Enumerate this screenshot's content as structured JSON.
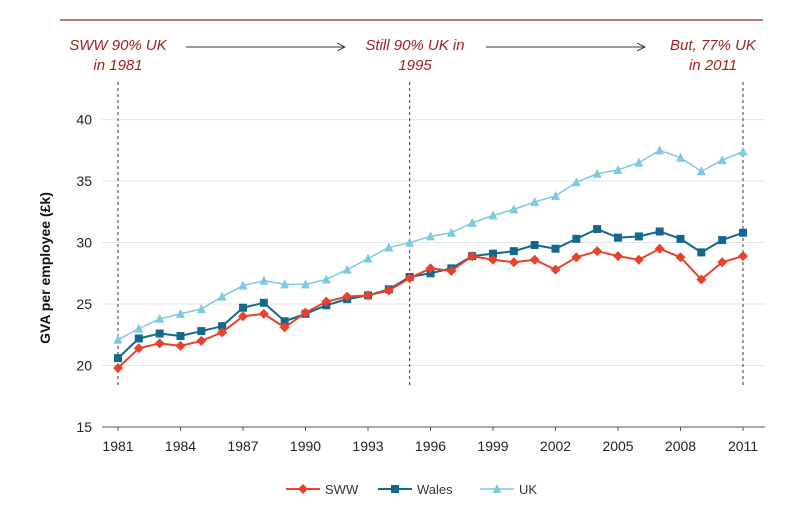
{
  "colors": {
    "accent": "#a32020",
    "SWW": "#e8412c",
    "Wales": "#14688e",
    "UK": "#7dc8e3"
  },
  "annotations": [
    {
      "line1": "SWW 90% UK",
      "line2": "in 1981"
    },
    {
      "line1": "Still 90% UK in",
      "line2": "1995"
    },
    {
      "line1": "But, 77% UK",
      "line2": "in 2011"
    }
  ],
  "chart_data": {
    "type": "line",
    "title": "",
    "xlabel": "",
    "ylabel": "GVA per employee (£k)",
    "x": [
      1981,
      1982,
      1983,
      1984,
      1985,
      1986,
      1987,
      1988,
      1989,
      1990,
      1991,
      1992,
      1993,
      1994,
      1995,
      1996,
      1997,
      1998,
      1999,
      2000,
      2001,
      2002,
      2003,
      2004,
      2005,
      2006,
      2007,
      2008,
      2009,
      2010,
      2011
    ],
    "xticks": [
      "1981",
      "1984",
      "1987",
      "1990",
      "1993",
      "1996",
      "1999",
      "2002",
      "2005",
      "2008",
      "2011"
    ],
    "yticks": [
      "15",
      "20",
      "25",
      "30",
      "35",
      "40"
    ],
    "ylim": [
      15,
      42
    ],
    "grid": true,
    "legend_position": "bottom",
    "markers": [
      1981,
      1995,
      2011
    ],
    "series": [
      {
        "name": "SWW",
        "marker": "diamond",
        "values": [
          19.8,
          21.4,
          21.8,
          21.6,
          22.0,
          22.7,
          24.0,
          24.2,
          23.1,
          24.3,
          25.2,
          25.6,
          25.7,
          26.1,
          27.1,
          27.9,
          27.7,
          28.9,
          28.6,
          28.4,
          28.6,
          27.8,
          28.8,
          29.3,
          28.9,
          28.6,
          29.5,
          28.8,
          27.0,
          28.4,
          28.9
        ]
      },
      {
        "name": "Wales",
        "marker": "square",
        "values": [
          20.6,
          22.2,
          22.6,
          22.4,
          22.8,
          23.2,
          24.7,
          25.1,
          23.6,
          24.2,
          24.9,
          25.4,
          25.7,
          26.2,
          27.2,
          27.5,
          27.9,
          28.9,
          29.1,
          29.3,
          29.8,
          29.5,
          30.3,
          31.1,
          30.4,
          30.5,
          30.9,
          30.3,
          29.2,
          30.2,
          30.8
        ]
      },
      {
        "name": "UK",
        "marker": "triangle",
        "values": [
          22.1,
          23.0,
          23.8,
          24.2,
          24.6,
          25.6,
          26.5,
          26.9,
          26.6,
          26.6,
          27.0,
          27.8,
          28.7,
          29.6,
          30.0,
          30.5,
          30.8,
          31.6,
          32.2,
          32.7,
          33.3,
          33.8,
          34.9,
          35.6,
          35.9,
          36.5,
          37.5,
          36.9,
          35.8,
          36.7,
          37.4
        ]
      }
    ]
  }
}
